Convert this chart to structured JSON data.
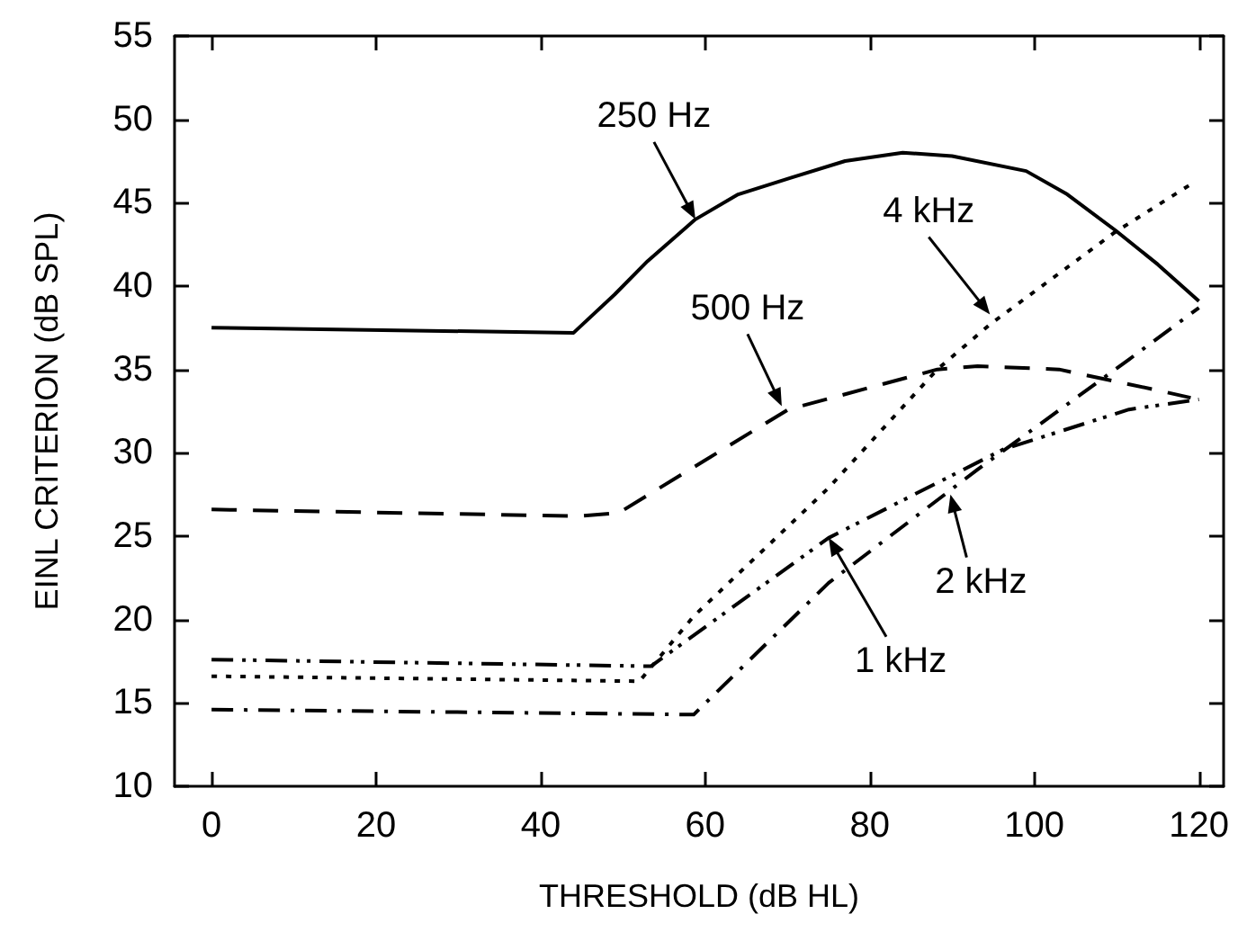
{
  "chart_data": {
    "type": "line",
    "xlabel": "THRESHOLD (dB HL)",
    "ylabel": "EINL CRITERION (dB SPL)",
    "xlim": [
      -4.5,
      123
    ],
    "ylim": [
      10,
      55
    ],
    "xticks": [
      0,
      20,
      40,
      60,
      80,
      100,
      120
    ],
    "yticks": [
      10,
      15,
      20,
      25,
      30,
      35,
      40,
      45,
      50,
      55
    ],
    "grid": false,
    "marker": "none",
    "series": [
      {
        "color": "#000000",
        "line_style": "solid",
        "x": [
          0,
          44,
          49,
          53,
          58.8,
          64,
          70.4,
          77,
          84,
          90,
          99,
          104,
          109.7,
          115,
          120
        ],
        "values": [
          37.5,
          37.2,
          39.5,
          41.5,
          44.0,
          45.5,
          46.5,
          47.5,
          48.0,
          47.8,
          46.9,
          45.5,
          43.4,
          41.3,
          39.1
        ]
      },
      {
        "color": "#000000",
        "line_style": "dashed",
        "x": [
          0,
          44.6,
          49.5,
          70.1,
          88.2,
          93.1,
          103,
          114.5,
          119
        ],
        "values": [
          26.6,
          26.2,
          26.4,
          32.6,
          35.0,
          35.2,
          35.0,
          33.8,
          33.3
        ]
      },
      {
        "color": "#000000",
        "line_style": "dotted",
        "x": [
          0,
          52,
          58.6,
          75,
          88.2,
          94.6,
          109.7,
          119
        ],
        "values": [
          16.6,
          16.3,
          20.2,
          27.9,
          35.0,
          37.7,
          43.2,
          46.1
        ]
      },
      {
        "color": "#000000",
        "line_style": "dashdotdot",
        "x": [
          0,
          53.4,
          75,
          96.2,
          111.5,
          120
        ],
        "values": [
          17.6,
          17.2,
          24.9,
          30.2,
          32.6,
          33.2
        ]
      },
      {
        "color": "#000000",
        "line_style": "dashdot",
        "x": [
          0,
          58.6,
          75,
          93.1,
          111.5,
          120
        ],
        "values": [
          14.6,
          14.3,
          22.2,
          29.0,
          35.6,
          38.7
        ]
      }
    ],
    "annotations": [
      {
        "text": "250 Hz",
        "x": 58.8,
        "y": 44.0
      },
      {
        "text": "500 Hz",
        "x": 69.3,
        "y": 32.8
      },
      {
        "text": "4 kHz",
        "x": 94.6,
        "y": 38.3
      },
      {
        "text": "1 kHz",
        "x": 75,
        "y": 24.9
      },
      {
        "text": "2 kHz",
        "x": 89.8,
        "y": 27.5
      }
    ]
  }
}
